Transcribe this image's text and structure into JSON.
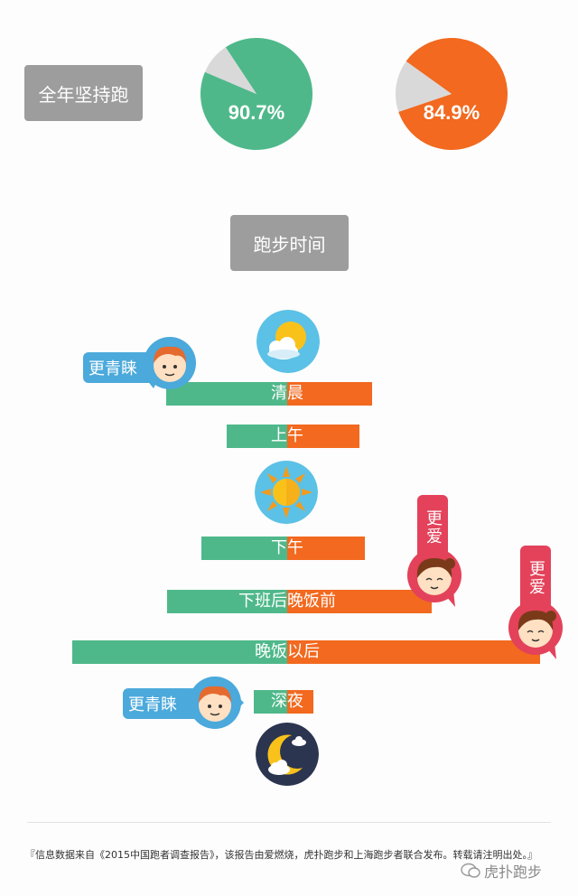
{
  "labels": {
    "year_round": "全年坚持跑",
    "running_time": "跑步时间"
  },
  "badges": {
    "prefer_male": "更青睐",
    "prefer_female": "更爱"
  },
  "footer": {
    "source": "『信息数据来自《2015中国跑者调查报告》，该报告由爱燃烧，虎扑跑步和上海跑步者联合发布。转载请注明出处。』",
    "watermark": "虎扑跑步"
  },
  "colors": {
    "male": "#4fb88a",
    "female": "#f2691f",
    "gray": "#9d9d9d"
  },
  "chart_data": [
    {
      "type": "pie",
      "title": "全年坚持跑",
      "slices": [
        {
          "label": "90.7%",
          "value": 90.7,
          "color": "#4fb88a"
        },
        {
          "label": "",
          "value": 9.3,
          "color": "#d9d9d9"
        }
      ]
    },
    {
      "type": "pie",
      "title": "全年坚持跑",
      "slices": [
        {
          "label": "84.9%",
          "value": 84.9,
          "color": "#f2691f"
        },
        {
          "label": "",
          "value": 15.1,
          "color": "#d9d9d9"
        }
      ]
    },
    {
      "type": "bar",
      "title": "跑步时间",
      "categories": [
        "清晨",
        "上午",
        "下午",
        "下班后晚饭前",
        "晚饭以后",
        "深夜"
      ],
      "category_split": [
        [
          "清",
          "晨"
        ],
        [
          "上",
          "午"
        ],
        [
          "下",
          "午"
        ],
        [
          "下班后",
          "晚饭前"
        ],
        [
          "晚饭",
          "以后"
        ],
        [
          "深",
          "夜"
        ]
      ],
      "series": [
        {
          "values": [
            134,
            67,
            95,
            133,
            238,
            37
          ]
        },
        {
          "values": [
            94,
            80,
            86,
            160,
            280,
            29
          ]
        }
      ]
    }
  ]
}
